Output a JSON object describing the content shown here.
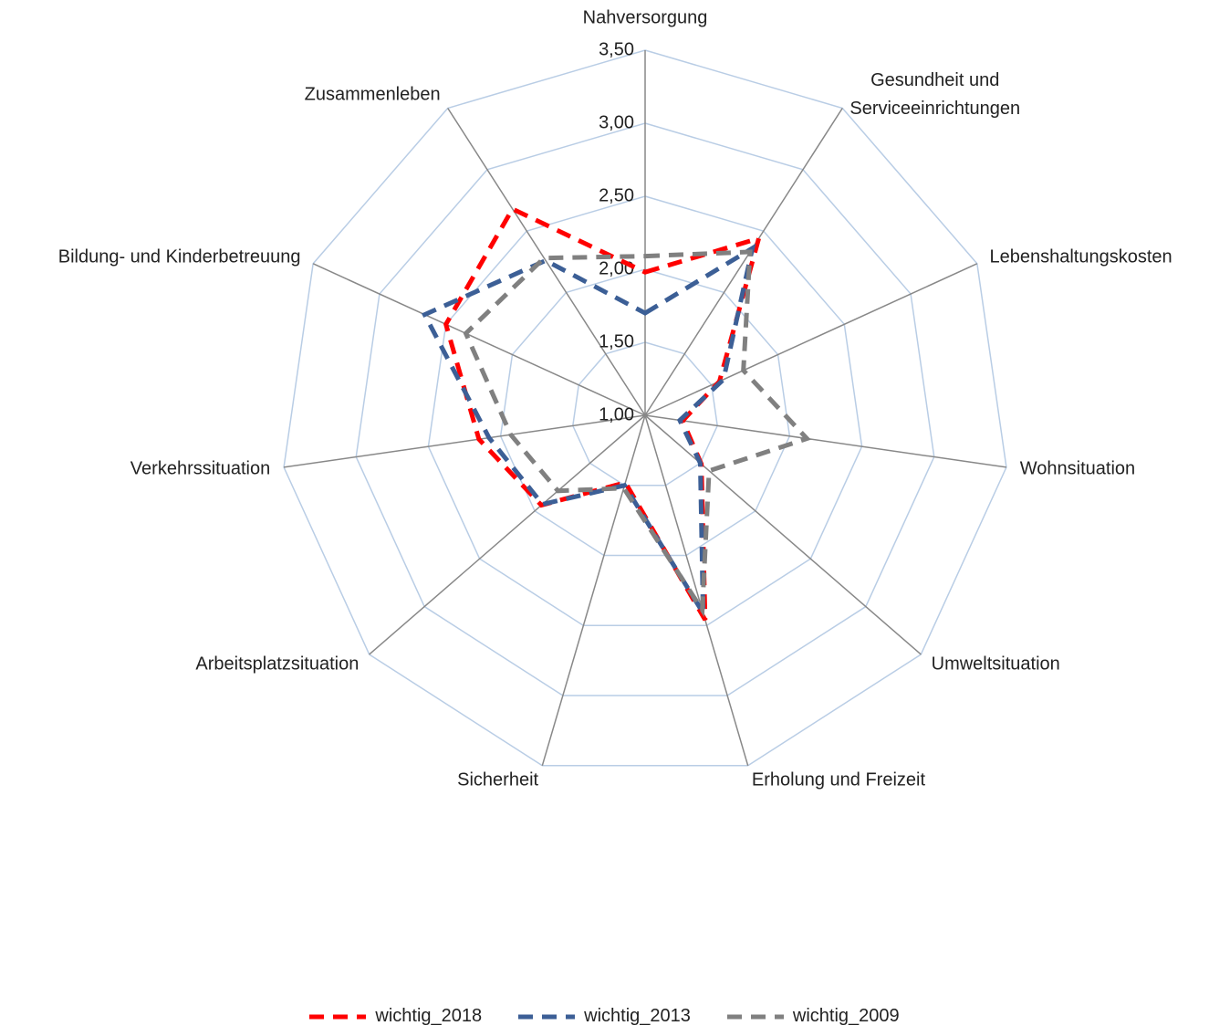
{
  "chart_data": {
    "type": "radar",
    "categories": [
      "Nahversorgung",
      "Gesundheit und\nServiceeinrichtungen",
      "Lebenshaltungskosten",
      "Wohnsituation",
      "Umweltsituation",
      "Erholung und Freizeit",
      "Sicherheit",
      "Arbeitsplatzsituation",
      "Verkehrssituation",
      "Bildung- und Kinderbetreuung",
      "Zusammenleben"
    ],
    "series": [
      {
        "name": "wichtig_2018",
        "color": "#ff0000",
        "values": [
          1.98,
          2.44,
          1.56,
          1.26,
          1.51,
          2.46,
          1.48,
          1.94,
          2.15,
          2.5,
          2.68
        ]
      },
      {
        "name": "wichtig_2013",
        "color": "#3c5f96",
        "values": [
          1.7,
          2.36,
          1.59,
          1.24,
          1.5,
          2.41,
          1.5,
          1.93,
          2.08,
          2.66,
          2.26
        ]
      },
      {
        "name": "wichtig_2009",
        "color": "#808080",
        "values": [
          2.09,
          2.33,
          1.74,
          2.12,
          1.58,
          2.39,
          1.52,
          1.79,
          1.93,
          2.35,
          2.28
        ]
      }
    ],
    "ylim": [
      1,
      3.5
    ],
    "yticks": [
      {
        "value": 1,
        "label": "1,00"
      },
      {
        "value": 1.5,
        "label": "1,50"
      },
      {
        "value": 2,
        "label": "2,00"
      },
      {
        "value": 2.5,
        "label": "2,50"
      },
      {
        "value": 3,
        "label": "3,00"
      },
      {
        "value": 3.5,
        "label": "3,50"
      }
    ],
    "grid": true,
    "legend": "bottom"
  }
}
